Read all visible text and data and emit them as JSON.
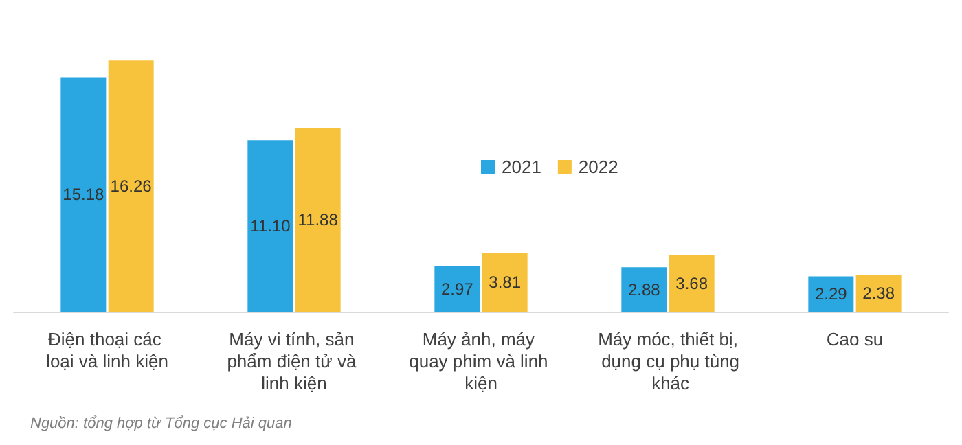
{
  "chart_data": {
    "type": "bar",
    "categories": [
      "Điện thoại các loại và linh kiện",
      "Máy vi tính, sản phẩm điện tử và linh kiện",
      "Máy ảnh, máy quay phim và linh kiện",
      "Máy móc, thiết bị, dụng cụ phụ tùng khác",
      "Cao su"
    ],
    "series": [
      {
        "name": "2021",
        "color": "#2aa7e1",
        "values": [
          15.18,
          11.1,
          2.97,
          2.88,
          2.29
        ],
        "value_labels": [
          "15.18",
          "11.10",
          "2.97",
          "2.88",
          "2.29"
        ]
      },
      {
        "name": "2022",
        "color": "#f7c33c",
        "values": [
          16.26,
          11.88,
          3.81,
          3.68,
          2.38
        ],
        "value_labels": [
          "16.26",
          "11.88",
          "3.81",
          "3.68",
          "2.38"
        ]
      }
    ],
    "legend": "top right",
    "annotations": [
      "Nguồn: tổng hợp từ Tổng cục Hải quan"
    ]
  }
}
